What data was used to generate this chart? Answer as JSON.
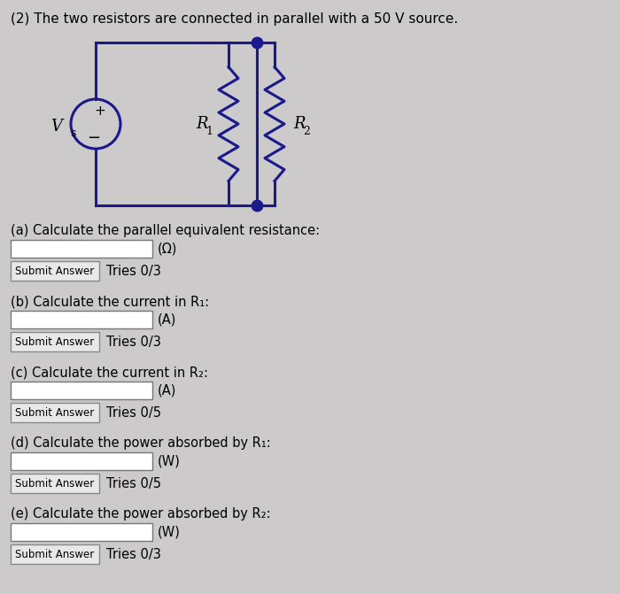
{
  "title": "(2) The two resistors are connected in parallel with a 50 V source.",
  "bg_color": "#cccaca",
  "circuit_color": "#1a1a8c",
  "text_color": "#000000",
  "questions": [
    {
      "label": "(a) Calculate the parallel equivalent resistance:",
      "unit": "(Ω)",
      "tries": "Tries 0/3"
    },
    {
      "label": "(b) Calculate the current in R₁:",
      "unit": "(A)",
      "tries": "Tries 0/3"
    },
    {
      "label": "(c) Calculate the current in R₂:",
      "unit": "(A)",
      "tries": "Tries 0/5"
    },
    {
      "label": "(d) Calculate the power absorbed by R₁:",
      "unit": "(W)",
      "tries": "Tries 0/5"
    },
    {
      "label": "(e) Calculate the power absorbed by R₂:",
      "unit": "(W)",
      "tries": "Tries 0/3"
    }
  ],
  "Vs_label": "V",
  "Vs_sub": "s",
  "R1_label": "R",
  "R1_sub": "1",
  "R2_label": "R",
  "R2_sub": "2",
  "plus_label": "+",
  "minus_label": "−"
}
